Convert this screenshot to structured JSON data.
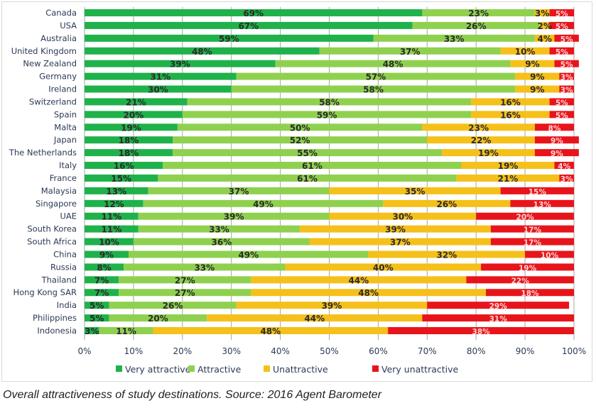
{
  "caption": "Overall attractiveness of study destinations. Source: 2016 Agent Barometer",
  "chart_data": {
    "type": "bar",
    "orientation": "horizontal",
    "stacked": "100%",
    "title": "",
    "xlabel": "",
    "ylabel": "",
    "xlim": [
      0,
      100
    ],
    "x_ticks": [
      "0%",
      "10%",
      "20%",
      "30%",
      "40%",
      "50%",
      "60%",
      "70%",
      "80%",
      "90%",
      "100%"
    ],
    "grid": true,
    "legend_position": "bottom",
    "categories": [
      "Canada",
      "USA",
      "Australia",
      "United Kingdom",
      "New Zealand",
      "Germany",
      "Ireland",
      "Switzerland",
      "Spain",
      "Malta",
      "Japan",
      "The Netherlands",
      "Italy",
      "France",
      "Malaysia",
      "Singapore",
      "UAE",
      "South Korea",
      "South Africa",
      "China",
      "Russia",
      "Thailand",
      "Hong Kong SAR",
      "India",
      "Philippines",
      "Indonesia"
    ],
    "series": [
      {
        "name": "Very attractive",
        "color": "#1fb24a",
        "values": [
          69,
          67,
          59,
          48,
          39,
          31,
          30,
          21,
          20,
          19,
          18,
          18,
          16,
          15,
          13,
          12,
          11,
          11,
          10,
          9,
          8,
          7,
          7,
          5,
          5,
          3
        ]
      },
      {
        "name": "Attractive",
        "color": "#8fd14f",
        "values": [
          23,
          26,
          33,
          37,
          48,
          57,
          58,
          58,
          59,
          50,
          52,
          55,
          61,
          61,
          37,
          49,
          39,
          33,
          36,
          49,
          33,
          27,
          27,
          26,
          20,
          11
        ]
      },
      {
        "name": "Unattractive",
        "color": "#f5c019",
        "values": [
          3,
          2,
          4,
          10,
          9,
          9,
          9,
          16,
          16,
          23,
          22,
          19,
          19,
          21,
          35,
          26,
          30,
          39,
          37,
          32,
          40,
          44,
          48,
          39,
          44,
          48
        ]
      },
      {
        "name": "Very unattractive",
        "color": "#e8141b",
        "values": [
          5,
          5,
          5,
          5,
          5,
          3,
          3,
          5,
          5,
          8,
          9,
          9,
          4,
          3,
          15,
          13,
          20,
          17,
          17,
          10,
          19,
          22,
          18,
          29,
          31,
          38
        ]
      }
    ]
  }
}
